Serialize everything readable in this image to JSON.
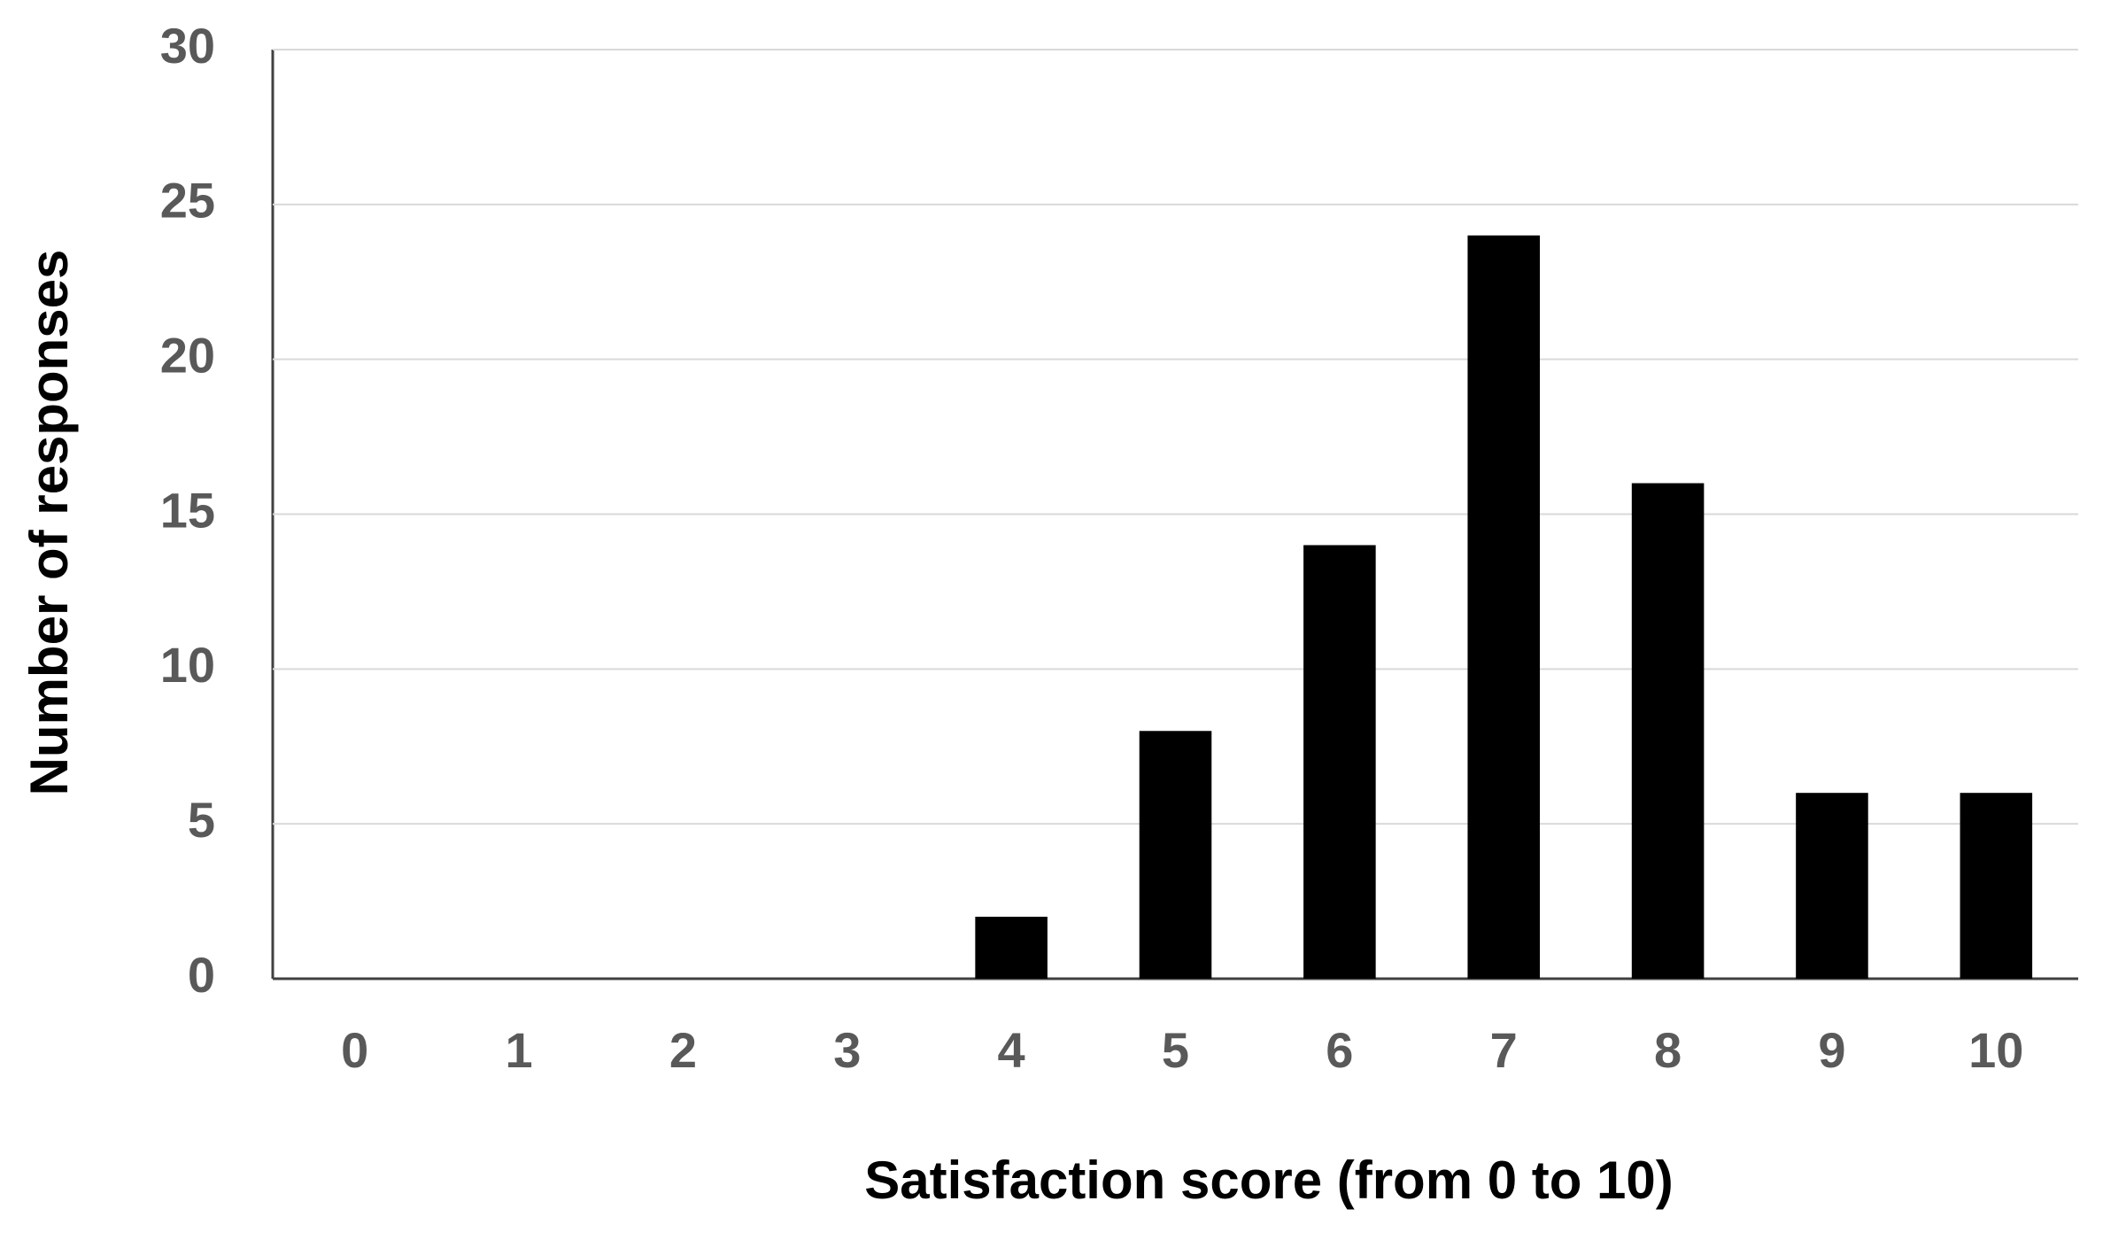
{
  "chart_data": {
    "type": "bar",
    "x_label": "Satisfaction score (from 0 to 10)",
    "y_label": "Number of responses",
    "categories": [
      "0",
      "1",
      "2",
      "3",
      "4",
      "5",
      "6",
      "7",
      "8",
      "9",
      "10"
    ],
    "values": [
      0,
      0,
      0,
      0,
      2,
      8,
      14,
      24,
      16,
      6,
      6
    ],
    "color": "#000000",
    "ylim": [
      0,
      30
    ],
    "yticks": [
      0,
      5,
      10,
      15,
      20,
      25,
      30
    ],
    "grid": true
  }
}
